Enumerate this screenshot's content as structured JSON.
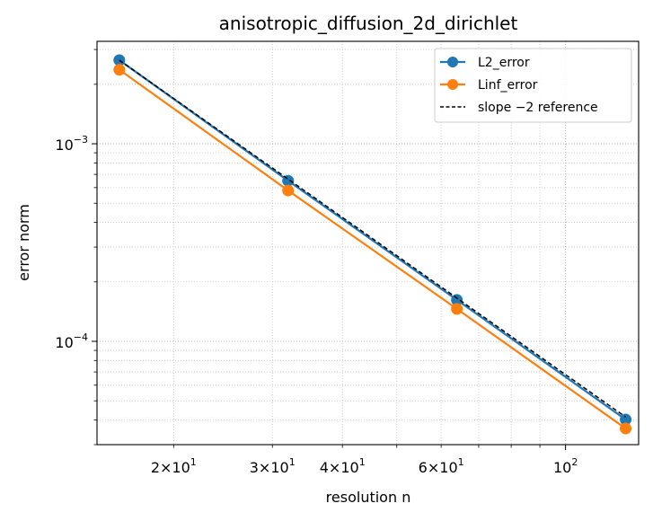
{
  "chart_data": {
    "type": "line",
    "title": "anisotropic_diffusion_2d_dirichlet",
    "xlabel": "resolution n",
    "ylabel": "error norm",
    "xscale": "log",
    "yscale": "log",
    "xlim": [
      14.6,
      135
    ],
    "ylim": [
      3e-05,
      0.0033
    ],
    "grid": true,
    "legend_position": "top-right",
    "x": [
      16,
      32,
      64,
      128
    ],
    "series": [
      {
        "name": "L2_error",
        "values": [
          0.00265,
          0.00065,
          0.000162,
          4.02e-05
        ],
        "color": "#1f77b4",
        "marker": "circle",
        "line": "solid"
      },
      {
        "name": "Linf_error",
        "values": [
          0.00237,
          0.00058,
          0.000146,
          3.62e-05
        ],
        "color": "#ff7f0e",
        "marker": "circle",
        "line": "solid"
      },
      {
        "name": "slope −2 reference",
        "values": [
          0.00265,
          0.0006625,
          0.000165625,
          4.14e-05
        ],
        "color": "#000000",
        "marker": "none",
        "line": "dashed"
      }
    ],
    "x_ticks": [
      {
        "value": 20,
        "base": "2×10",
        "exp": "1"
      },
      {
        "value": 30,
        "base": "3×10",
        "exp": "1"
      },
      {
        "value": 40,
        "base": "4×10",
        "exp": "1"
      },
      {
        "value": 60,
        "base": "6×10",
        "exp": "1"
      },
      {
        "value": 100,
        "base": "10",
        "exp": "2"
      }
    ],
    "y_ticks": [
      {
        "value": 0.001,
        "base": "10",
        "exp": "−3"
      },
      {
        "value": 0.0001,
        "base": "10",
        "exp": "−4"
      }
    ]
  }
}
